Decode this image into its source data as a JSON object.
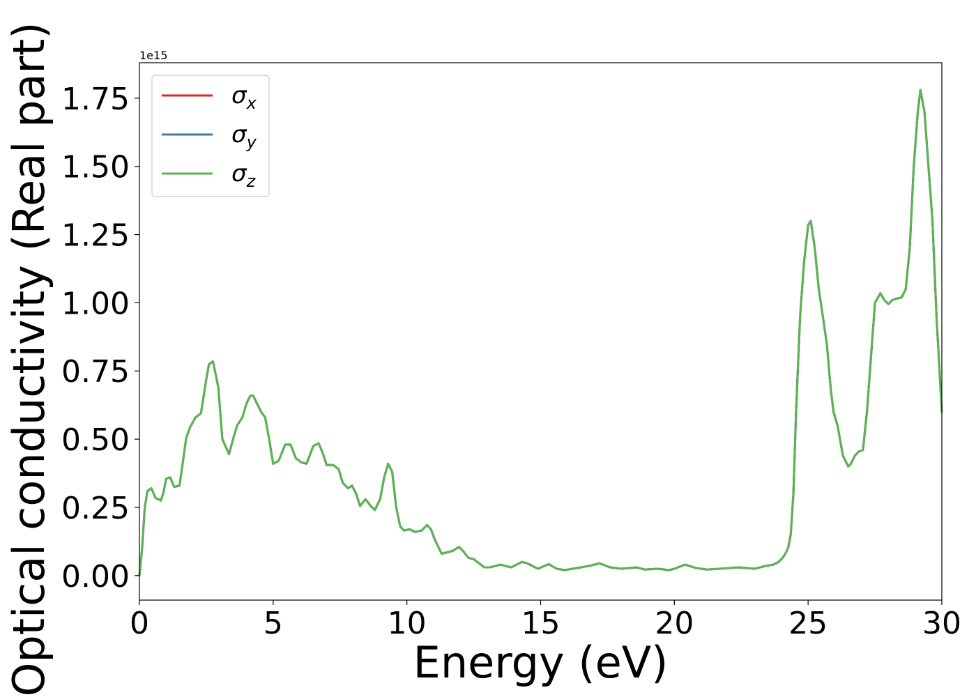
{
  "chart_data": {
    "type": "line",
    "xlabel": "Energy (eV)",
    "ylabel": "Optical conductivity (Real part)",
    "y_scale_label": "1e15",
    "xlim": [
      0,
      30
    ],
    "ylim": [
      -0.09,
      1.88
    ],
    "x_ticks": [
      "0",
      "5",
      "10",
      "15",
      "20",
      "25",
      "30"
    ],
    "x_tick_values": [
      0,
      5,
      10,
      15,
      20,
      25,
      30
    ],
    "y_ticks": [
      "0.00",
      "0.25",
      "0.50",
      "0.75",
      "1.00",
      "1.25",
      "1.50",
      "1.75"
    ],
    "y_tick_values": [
      0.0,
      0.25,
      0.5,
      0.75,
      1.0,
      1.25,
      1.5,
      1.75
    ],
    "grid": false,
    "legend_placement": "upper-left",
    "series": [
      {
        "name": "σx",
        "symbol": "σ",
        "subscript": "x",
        "color": "#d62728"
      },
      {
        "name": "σy",
        "symbol": "σ",
        "subscript": "y",
        "color": "#3a7bb0"
      },
      {
        "name": "σz",
        "symbol": "σ",
        "subscript": "z",
        "color": "#5cb352"
      }
    ],
    "x": [
      0,
      0.1,
      0.2,
      0.3,
      0.45,
      0.6,
      0.8,
      0.9,
      1.0,
      1.15,
      1.3,
      1.5,
      1.6,
      1.75,
      1.9,
      2.1,
      2.3,
      2.5,
      2.6,
      2.75,
      2.95,
      3.1,
      3.35,
      3.5,
      3.65,
      3.85,
      4.0,
      4.15,
      4.25,
      4.4,
      4.55,
      4.7,
      4.85,
      5.0,
      5.2,
      5.45,
      5.65,
      5.85,
      6.05,
      6.25,
      6.5,
      6.7,
      6.85,
      7.0,
      7.25,
      7.45,
      7.6,
      7.8,
      7.95,
      8.1,
      8.25,
      8.45,
      8.65,
      8.8,
      9.0,
      9.15,
      9.3,
      9.45,
      9.6,
      9.75,
      9.9,
      10.1,
      10.3,
      10.55,
      10.75,
      10.9,
      11.05,
      11.3,
      11.5,
      11.7,
      11.95,
      12.1,
      12.3,
      12.5,
      12.7,
      12.9,
      13.1,
      13.5,
      13.9,
      14.3,
      14.5,
      14.9,
      15.3,
      15.6,
      15.9,
      16.2,
      16.5,
      16.8,
      17.2,
      17.6,
      18.0,
      18.6,
      18.9,
      19.4,
      19.8,
      20.0,
      20.4,
      20.8,
      21.2,
      21.7,
      22.4,
      22.7,
      23.0,
      23.4,
      23.7,
      23.9,
      24.05,
      24.15,
      24.25,
      24.35,
      24.45,
      24.55,
      24.7,
      24.85,
      25.0,
      25.1,
      25.25,
      25.4,
      25.55,
      25.7,
      25.85,
      25.95,
      26.1,
      26.3,
      26.5,
      26.6,
      26.75,
      26.9,
      27.05,
      27.2,
      27.35,
      27.5,
      27.7,
      27.85,
      28.0,
      28.15,
      28.3,
      28.5,
      28.65,
      28.8,
      28.95,
      29.1,
      29.2,
      29.35,
      29.5,
      29.65,
      29.8,
      30.0
    ],
    "y": [
      0.0,
      0.1,
      0.25,
      0.31,
      0.32,
      0.285,
      0.275,
      0.305,
      0.355,
      0.36,
      0.325,
      0.33,
      0.4,
      0.505,
      0.545,
      0.58,
      0.595,
      0.72,
      0.775,
      0.785,
      0.69,
      0.5,
      0.445,
      0.5,
      0.55,
      0.58,
      0.63,
      0.66,
      0.66,
      0.63,
      0.6,
      0.58,
      0.5,
      0.41,
      0.42,
      0.48,
      0.48,
      0.43,
      0.415,
      0.41,
      0.475,
      0.485,
      0.45,
      0.405,
      0.405,
      0.39,
      0.34,
      0.32,
      0.33,
      0.3,
      0.255,
      0.28,
      0.255,
      0.24,
      0.28,
      0.36,
      0.41,
      0.38,
      0.25,
      0.18,
      0.165,
      0.17,
      0.16,
      0.165,
      0.185,
      0.17,
      0.13,
      0.08,
      0.085,
      0.09,
      0.105,
      0.09,
      0.065,
      0.06,
      0.045,
      0.03,
      0.03,
      0.04,
      0.03,
      0.05,
      0.045,
      0.025,
      0.042,
      0.025,
      0.02,
      0.025,
      0.03,
      0.035,
      0.045,
      0.03,
      0.025,
      0.03,
      0.022,
      0.025,
      0.02,
      0.025,
      0.04,
      0.028,
      0.022,
      0.025,
      0.03,
      0.028,
      0.025,
      0.035,
      0.04,
      0.05,
      0.065,
      0.08,
      0.1,
      0.15,
      0.3,
      0.6,
      0.95,
      1.15,
      1.285,
      1.3,
      1.2,
      1.05,
      0.95,
      0.85,
      0.68,
      0.6,
      0.55,
      0.44,
      0.4,
      0.41,
      0.44,
      0.455,
      0.46,
      0.6,
      0.8,
      1.0,
      1.035,
      1.01,
      0.995,
      1.01,
      1.015,
      1.02,
      1.05,
      1.2,
      1.5,
      1.7,
      1.78,
      1.7,
      1.5,
      1.3,
      0.95,
      0.6
    ]
  }
}
